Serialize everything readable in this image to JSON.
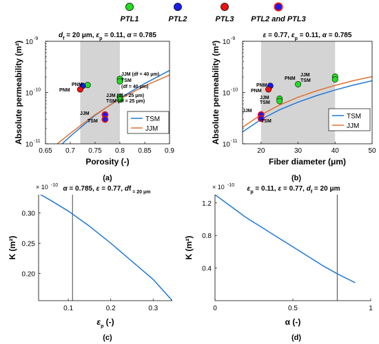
{
  "legend": {
    "items": [
      {
        "label": "PTL1",
        "color": "#22dd22",
        "edge": "#000000"
      },
      {
        "label": "PTL2",
        "color": "#1a1aee",
        "edge": "#000000"
      },
      {
        "label": "PTL3",
        "color": "#ee1111",
        "edge": "#000000"
      },
      {
        "label": "PTL2 and PTL3",
        "color": "#1a1aee",
        "edge": "#ee1111"
      }
    ]
  },
  "colors": {
    "TSM": "#1f77d4",
    "JJM": "#e07030",
    "shade": "#d4d4d4"
  },
  "chart_data": [
    {
      "type": "line",
      "panel": "(a)",
      "title_parts": [
        "d",
        "f",
        " = 20 μm, ",
        "ε",
        "p",
        " = 0.11, ",
        "α",
        " = 0.785"
      ],
      "xlabel": "Porosity (-)",
      "ylabel": "Absolute permeability (m²)",
      "xlim": [
        0.65,
        0.9
      ],
      "ylim": [
        1e-11,
        1e-09
      ],
      "yscale": "log",
      "xticks": [
        0.65,
        0.7,
        0.75,
        0.8,
        0.85,
        0.9
      ],
      "xtick_labels": [
        "0.65",
        "0.7",
        "0.75",
        "0.8",
        "0.85",
        "0.9"
      ],
      "ytick_labels": [
        "10",
        "10",
        "10"
      ],
      "ytick_exponents": [
        "-11",
        "-10",
        "-9"
      ],
      "shaded_x": [
        0.72,
        0.8
      ],
      "series": [
        {
          "name": "TSM",
          "x": [
            0.65,
            0.7,
            0.75,
            0.8,
            0.85,
            0.9
          ],
          "y": [
            5e-12,
            1.4e-11,
            3.6e-11,
            7.8e-11,
            1.5e-10,
            2.7e-10
          ]
        },
        {
          "name": "JJM",
          "x": [
            0.65,
            0.7,
            0.75,
            0.8,
            0.85,
            0.9
          ],
          "y": [
            6.5e-12,
            1.6e-11,
            3.7e-11,
            7.5e-11,
            1.35e-10,
            2.2e-10
          ]
        }
      ],
      "points": [
        {
          "group": "PTL1",
          "x": 0.735,
          "y": 1.4e-10
        },
        {
          "group": "PTL1",
          "x": 0.8,
          "y": 1.85e-10
        },
        {
          "group": "PTL1",
          "x": 0.8,
          "y": 1.65e-10
        },
        {
          "group": "PTL1",
          "x": 0.8,
          "y": 8.2e-11
        },
        {
          "group": "PTL1",
          "x": 0.8,
          "y": 7.3e-11
        },
        {
          "group": "PTL2",
          "x": 0.725,
          "y": 1.35e-10
        },
        {
          "group": "PTL3",
          "x": 0.72,
          "y": 1.15e-10
        },
        {
          "group": "PTL2 and PTL3",
          "x": 0.77,
          "y": 3.7e-11
        },
        {
          "group": "PTL2 and PTL3",
          "x": 0.77,
          "y": 3e-11
        }
      ],
      "annotations": [
        "PNM",
        "PNM",
        "JJM (df = 40 μm)",
        "TSM",
        "(df = 40 μm)",
        "JJM (df = 25 μm)",
        "TSM (df = 25 μm)",
        "JJM",
        "TSM"
      ],
      "legend": [
        "TSM",
        "JJM"
      ]
    },
    {
      "type": "line",
      "panel": "(b)",
      "title_parts": [
        "ε",
        " = 0.77, ",
        "ε",
        "p",
        " = 0.11, ",
        "α",
        " = 0.785"
      ],
      "xlabel": "Fiber diameter (μm)",
      "ylabel": "Absolute permeability (m²)",
      "xlim": [
        15,
        50
      ],
      "ylim": [
        1e-11,
        1e-09
      ],
      "yscale": "log",
      "xticks": [
        20,
        30,
        40,
        50
      ],
      "xtick_labels": [
        "20",
        "30",
        "40",
        "50"
      ],
      "ytick_labels": [
        "10",
        "10",
        "10"
      ],
      "ytick_exponents": [
        "-11",
        "-10",
        "-9"
      ],
      "shaded_x": [
        20,
        40
      ],
      "series": [
        {
          "name": "TSM",
          "x": [
            15,
            20,
            25,
            30,
            35,
            40,
            45,
            50
          ],
          "y": [
            1.7e-11,
            3e-11,
            4.6e-11,
            6.5e-11,
            8.7e-11,
            1.12e-10,
            1.4e-10,
            1.7e-10
          ]
        },
        {
          "name": "JJM",
          "x": [
            15,
            20,
            25,
            30,
            35,
            40,
            45,
            50
          ],
          "y": [
            2.1e-11,
            3.7e-11,
            5.7e-11,
            8.1e-11,
            1.08e-10,
            1.38e-10,
            1.71e-10,
            2.05e-10
          ]
        }
      ],
      "points": [
        {
          "group": "PTL2",
          "x": 22.5,
          "y": 1.35e-10
        },
        {
          "group": "PTL3",
          "x": 22,
          "y": 1.15e-10
        },
        {
          "group": "PTL1",
          "x": 25,
          "y": 7.6e-11
        },
        {
          "group": "PTL1",
          "x": 25,
          "y": 6.8e-11
        },
        {
          "group": "PTL1",
          "x": 30,
          "y": 1.45e-10
        },
        {
          "group": "PTL1",
          "x": 40,
          "y": 2.05e-10
        },
        {
          "group": "PTL1",
          "x": 40,
          "y": 1.8e-10
        },
        {
          "group": "PTL2 and PTL3",
          "x": 20,
          "y": 3.7e-11
        },
        {
          "group": "PTL2 and PTL3",
          "x": 20,
          "y": 3.1e-11
        }
      ],
      "annotations": [
        "PNM",
        "PNM",
        "PNM",
        "JJM",
        "TSM",
        "JJM",
        "TSM",
        "JJM",
        "TSM"
      ],
      "legend": [
        "TSM",
        "JJM"
      ]
    },
    {
      "type": "line",
      "panel": "(c)",
      "title_parts": [
        "α",
        " = 0.785, ",
        "ε",
        " = 0.77, ",
        "d",
        "f",
        " = 20 μm"
      ],
      "xlabel_parts": [
        "ε",
        "p",
        " (-)"
      ],
      "ylabel": "K (m²)",
      "scale_text": "× 10",
      "scale_exp": "-10",
      "xlim": [
        0.03,
        0.345
      ],
      "ylim": [
        0.155,
        0.33
      ],
      "xticks": [
        0.1,
        0.2,
        0.3
      ],
      "xtick_labels": [
        "0.1",
        "0.2",
        "0.3"
      ],
      "yticks": [
        0.2,
        0.25,
        0.3
      ],
      "ytick_labels": [
        "0.20",
        "0.25",
        "0.30"
      ],
      "vline_x": 0.11,
      "series": [
        {
          "name": "K",
          "x": [
            0.03,
            0.06,
            0.1,
            0.15,
            0.2,
            0.25,
            0.3,
            0.345
          ],
          "y": [
            0.332,
            0.32,
            0.303,
            0.278,
            0.25,
            0.22,
            0.19,
            0.155
          ]
        }
      ]
    },
    {
      "type": "line",
      "panel": "(d)",
      "title_parts": [
        "ε",
        "p",
        " = 0.11, ",
        "ε",
        " = 0.77, ",
        "d",
        "f",
        " = 20 μm"
      ],
      "xlabel": "α (-)",
      "ylabel": "K (m²)",
      "scale_text": "× 10",
      "scale_exp": "-10",
      "xlim": [
        0,
        1
      ],
      "ylim": [
        0,
        1.3
      ],
      "xticks": [
        0,
        0.5,
        1
      ],
      "xtick_labels": [
        "0",
        "0.5",
        "1"
      ],
      "yticks": [
        0.4,
        0.8,
        1.2
      ],
      "ytick_labels": [
        "0.4",
        "0.8",
        "1.2"
      ],
      "vline_x": 0.785,
      "series": [
        {
          "name": "K",
          "x": [
            0,
            0.1,
            0.2,
            0.3,
            0.4,
            0.5,
            0.6,
            0.7,
            0.785,
            0.9
          ],
          "y": [
            1.3,
            1.16,
            1.02,
            0.9,
            0.78,
            0.66,
            0.54,
            0.42,
            0.33,
            0.22
          ]
        }
      ]
    }
  ]
}
